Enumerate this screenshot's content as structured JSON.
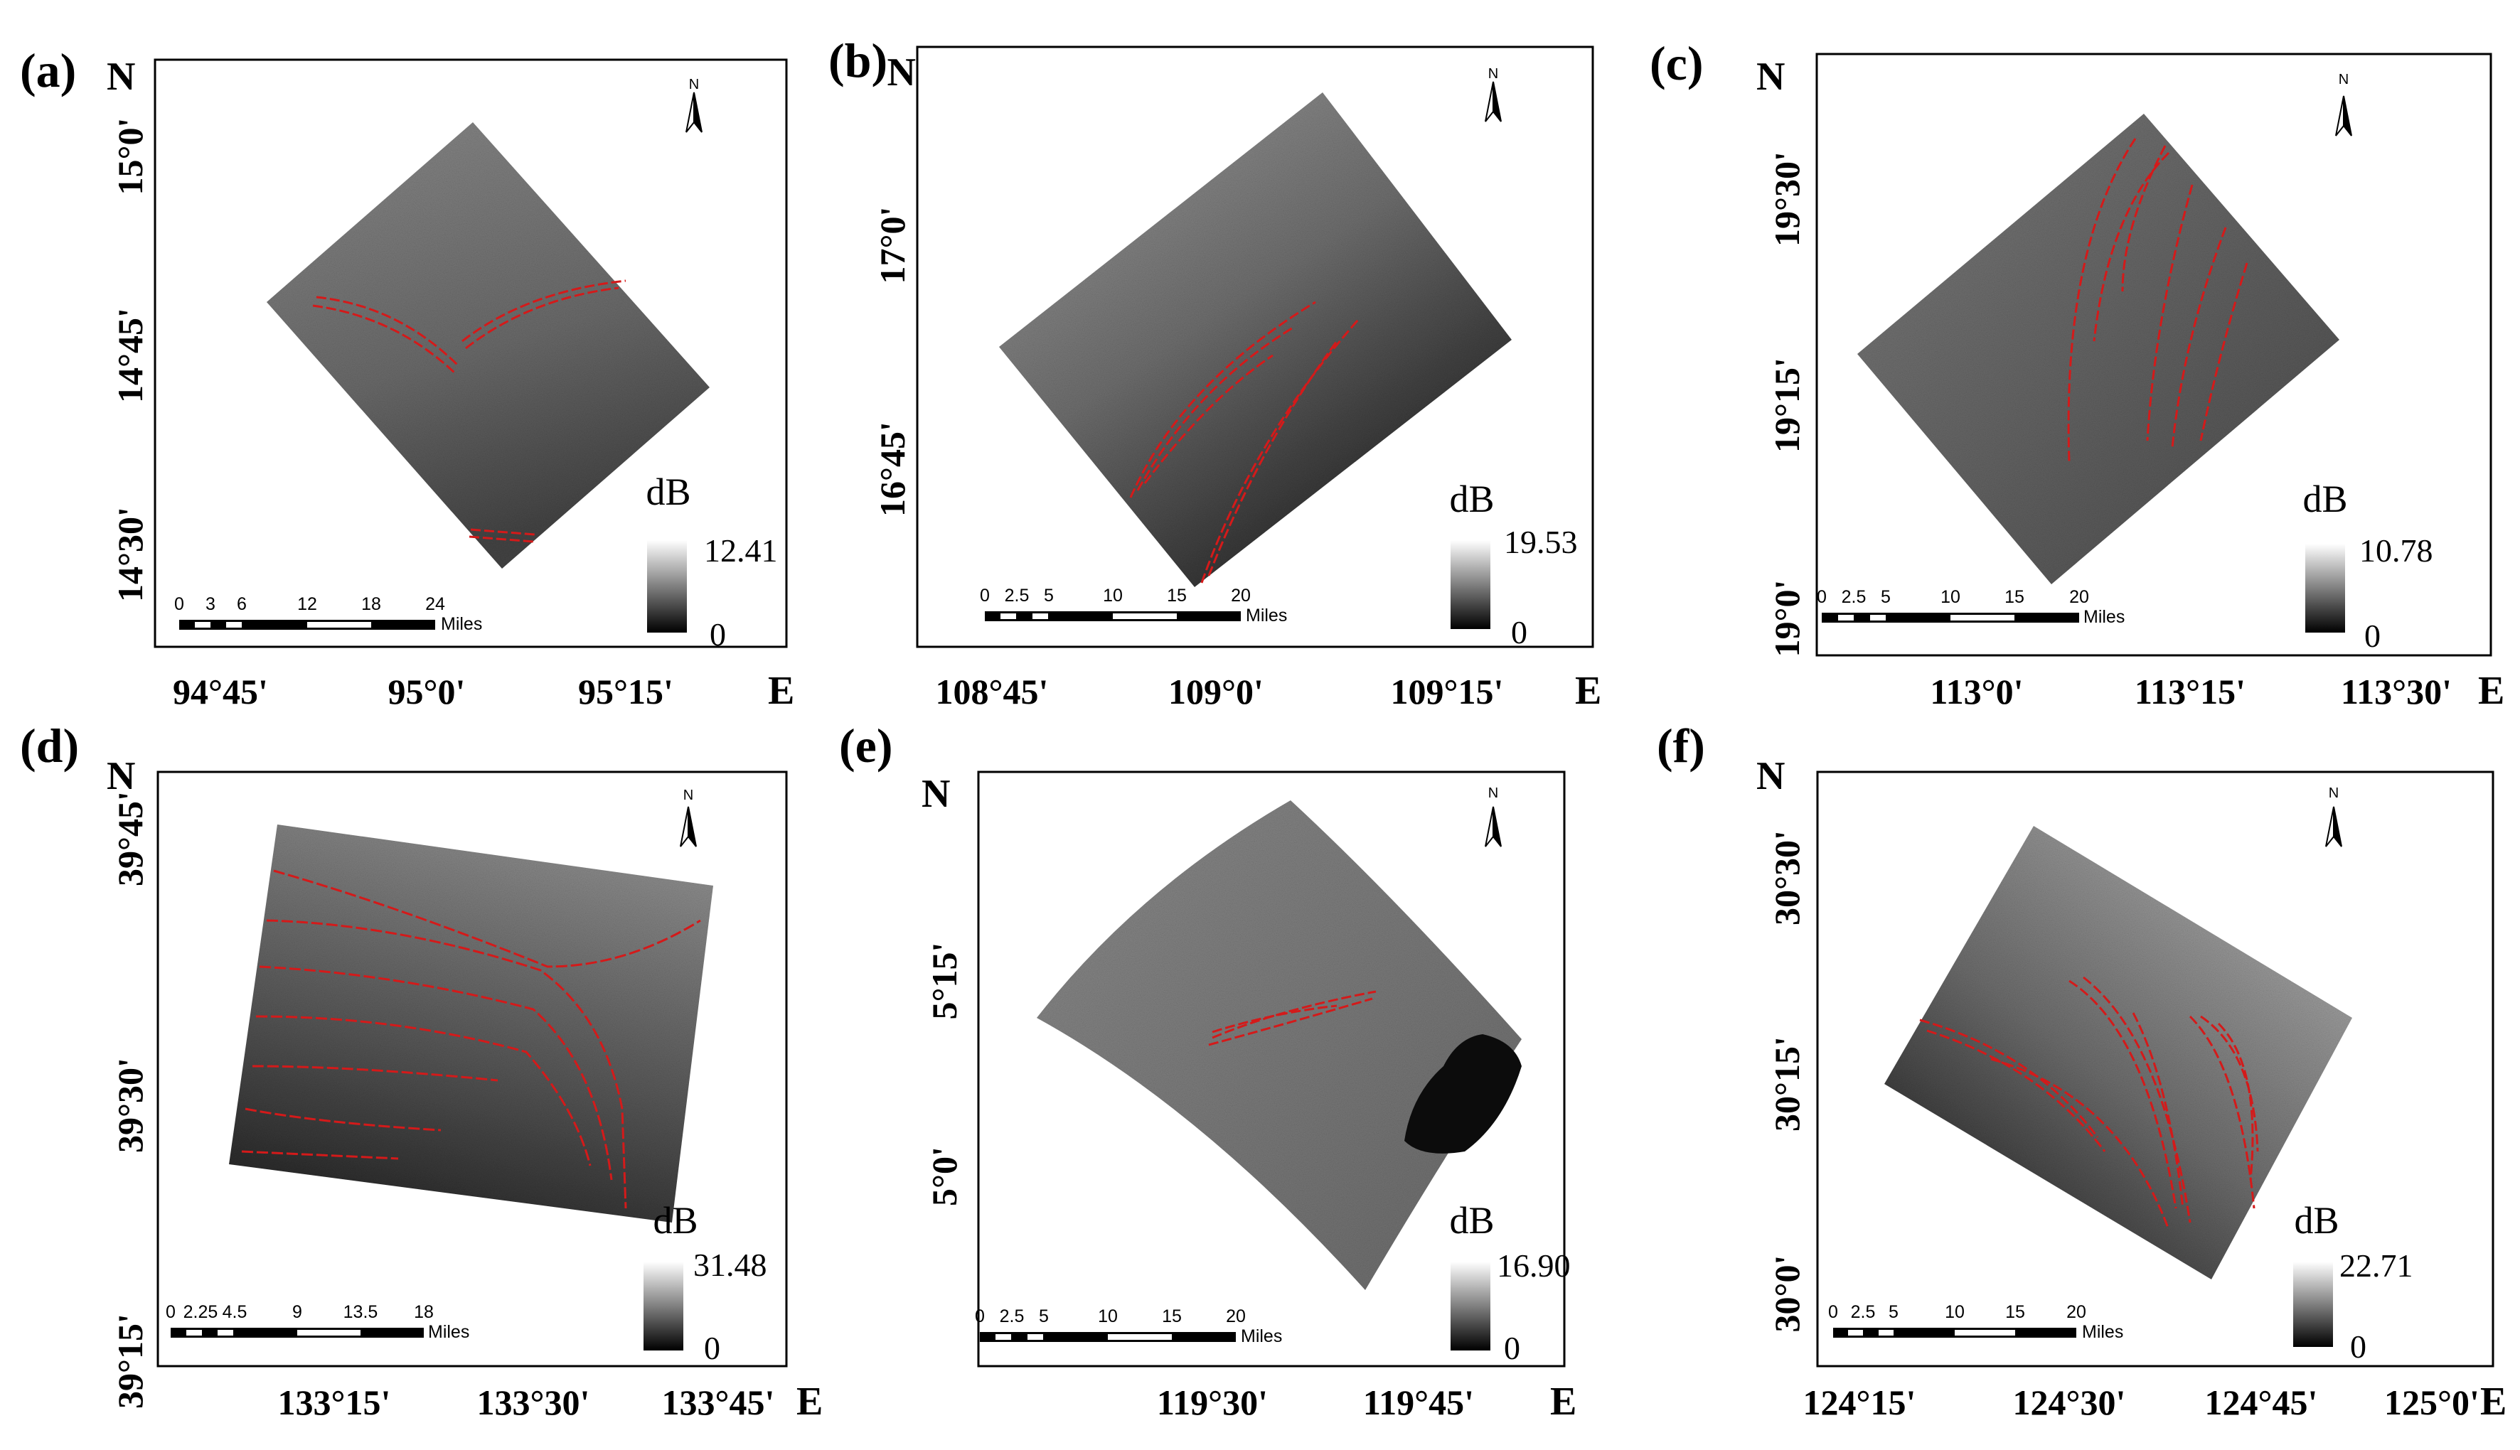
{
  "panels": [
    {
      "id": "a",
      "label": "(a)",
      "north": "N",
      "east": "E",
      "lat_ticks": [
        "15°0'",
        "14°45'",
        "14°30'"
      ],
      "lon_ticks": [
        "94°45'",
        "95°0'",
        "95°15'"
      ],
      "scale": {
        "ticks": [
          "0",
          "3",
          "6",
          "12",
          "18",
          "24"
        ],
        "unit": "Miles"
      },
      "colorbar": {
        "unit": "dB",
        "max": "12.41",
        "min": "0"
      }
    },
    {
      "id": "b",
      "label": "(b)",
      "north": "N",
      "east": "E",
      "lat_ticks": [
        "17°0'",
        "16°45'"
      ],
      "lon_ticks": [
        "108°45'",
        "109°0'",
        "109°15'"
      ],
      "scale": {
        "ticks": [
          "0",
          "2.5",
          "5",
          "10",
          "15",
          "20"
        ],
        "unit": "Miles"
      },
      "colorbar": {
        "unit": "dB",
        "max": "19.53",
        "min": "0"
      }
    },
    {
      "id": "c",
      "label": "(c)",
      "north": "N",
      "east": "E",
      "lat_ticks": [
        "19°30'",
        "19°15'",
        "19°0'"
      ],
      "lon_ticks": [
        "113°0'",
        "113°15'",
        "113°30'"
      ],
      "scale": {
        "ticks": [
          "0",
          "2.5",
          "5",
          "10",
          "15",
          "20"
        ],
        "unit": "Miles"
      },
      "colorbar": {
        "unit": "dB",
        "max": "10.78",
        "min": "0"
      }
    },
    {
      "id": "d",
      "label": "(d)",
      "north": "N",
      "east": "E",
      "lat_ticks": [
        "39°45'",
        "39°30'",
        "39°15'"
      ],
      "lon_ticks": [
        "133°15'",
        "133°30'",
        "133°45'"
      ],
      "scale": {
        "ticks": [
          "0",
          "2.25",
          "4.5",
          "9",
          "13.5",
          "18"
        ],
        "unit": "Miles"
      },
      "colorbar": {
        "unit": "dB",
        "max": "31.48",
        "min": "0"
      }
    },
    {
      "id": "e",
      "label": "(e)",
      "north": "N",
      "east": "E",
      "lat_ticks": [
        "5°15'",
        "5°0'"
      ],
      "lon_ticks": [
        "119°30'",
        "119°45'"
      ],
      "scale": {
        "ticks": [
          "0",
          "2.5",
          "5",
          "10",
          "15",
          "20"
        ],
        "unit": "Miles"
      },
      "colorbar": {
        "unit": "dB",
        "max": "16.90",
        "min": "0"
      }
    },
    {
      "id": "f",
      "label": "(f)",
      "north": "N",
      "east": "E",
      "lat_ticks": [
        "30°30'",
        "30°15'",
        "30°0'"
      ],
      "lon_ticks": [
        "124°15'",
        "124°30'",
        "124°45'",
        "125°0'"
      ],
      "scale": {
        "ticks": [
          "0",
          "2.5",
          "5",
          "10",
          "15",
          "20"
        ],
        "unit": "Miles"
      },
      "colorbar": {
        "unit": "dB",
        "max": "22.71",
        "min": "0"
      }
    }
  ],
  "colors": {
    "frame": "#000000",
    "wave_line": "#d41a1a",
    "sar_light": "#9a9a9a",
    "sar_dark": "#2a2a2a"
  }
}
